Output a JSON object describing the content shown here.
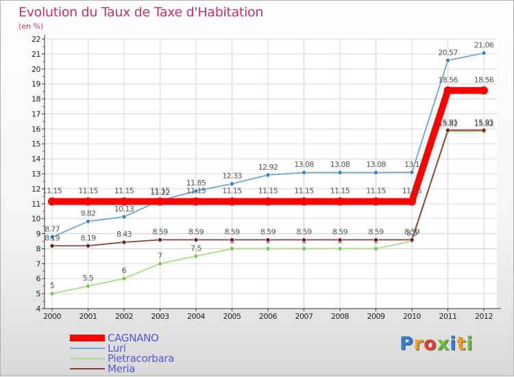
{
  "title": "Evolution du Taux de Taxe d'Habitation",
  "subtitle": "(en %)",
  "brand": "Proxiti",
  "colors": {
    "title": "#c0306f",
    "legend_text": "#5656d8"
  },
  "chart_data": {
    "type": "line",
    "x": [
      "2000",
      "2001",
      "2002",
      "2003",
      "2004",
      "2005",
      "2006",
      "2007",
      "2008",
      "2009",
      "2010",
      "2011",
      "2012"
    ],
    "ylim": [
      4,
      22
    ],
    "yticks": [
      4,
      5,
      6,
      7,
      8,
      9,
      10,
      11,
      12,
      13,
      14,
      15,
      16,
      17,
      18,
      19,
      20,
      21,
      22
    ],
    "grid": true,
    "legend_position": "bottom-left",
    "series": [
      {
        "name": "Luri",
        "color": "#6fa6cf",
        "marker_color": "#3b82c2",
        "values": [
          8.77,
          9.82,
          10.13,
          11.22,
          11.85,
          12.33,
          12.92,
          13.08,
          13.08,
          13.08,
          13.1,
          20.57,
          21.06
        ],
        "labels": [
          "8.77",
          "9.82",
          "10.13",
          "11.22",
          "11.85",
          "12.33",
          "12.92",
          "13.08",
          "13.08",
          "13.08",
          "13.1",
          "20.57",
          "21.06"
        ]
      },
      {
        "name": "Pietracorbara",
        "color": "#a8dc84",
        "marker_color": "#7dc84c",
        "values": [
          5,
          5.5,
          6,
          7,
          7.5,
          8,
          8,
          8,
          8,
          8,
          8.5,
          15.82,
          15.82
        ],
        "labels": [
          "5",
          "5.5",
          "6",
          "7",
          "7.5",
          "8",
          "8",
          "8",
          "8",
          "8",
          "8.5",
          "15.82",
          "15.82"
        ]
      },
      {
        "name": "Meria",
        "color": "#8b3a3a",
        "marker_color": "#6e1f1f",
        "values": [
          8.19,
          8.19,
          8.43,
          8.59,
          8.59,
          8.59,
          8.59,
          8.59,
          8.59,
          8.59,
          8.59,
          15.91,
          15.91
        ],
        "labels": [
          "8.19",
          "8.19",
          "8.43",
          "8.59",
          "8.59",
          "8.59",
          "8.59",
          "8.59",
          "8.59",
          "8.59",
          "8.59",
          "15.91",
          "15.91"
        ]
      },
      {
        "name": "CAGNANO",
        "color": "#ff0000",
        "marker_color": "#ff0000",
        "thick": true,
        "values": [
          11.15,
          11.15,
          11.15,
          11.15,
          11.15,
          11.15,
          11.15,
          11.15,
          11.15,
          11.15,
          11.15,
          18.56,
          18.56
        ],
        "labels": [
          "11.15",
          "11.15",
          "11.15",
          "11.15",
          "11.15",
          "11.15",
          "11.15",
          "11.15",
          "11.15",
          "11.15",
          "11.15",
          "18.56",
          "18.56"
        ]
      }
    ],
    "legend_order": [
      "CAGNANO",
      "Luri",
      "Pietracorbara",
      "Meria"
    ]
  }
}
